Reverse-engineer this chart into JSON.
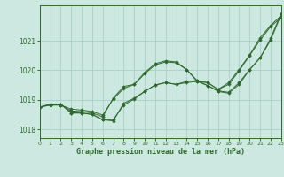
{
  "title": "Graphe pression niveau de la mer (hPa)",
  "background_color": "#cde8e0",
  "grid_color": "#a8cfc4",
  "line_color": "#2d6a2d",
  "marker_color": "#2d6a2d",
  "xmin": 0,
  "xmax": 23,
  "ymin": 1017.7,
  "ymax": 1022.2,
  "yticks": [
    1018,
    1019,
    1020,
    1021
  ],
  "xticks": [
    0,
    1,
    2,
    3,
    4,
    5,
    6,
    7,
    8,
    9,
    10,
    11,
    12,
    13,
    14,
    15,
    16,
    17,
    18,
    19,
    20,
    21,
    22,
    23
  ],
  "series": [
    [
      1018.75,
      1018.82,
      1018.82,
      1018.62,
      1018.6,
      1018.55,
      1018.42,
      1019.05,
      1019.45,
      1019.52,
      1019.92,
      1020.22,
      1020.32,
      1020.28,
      1020.02,
      1019.65,
      1019.58,
      1019.35,
      1019.58,
      1020.02,
      1020.52,
      1021.1,
      1021.52,
      1021.85
    ],
    [
      1018.75,
      1018.85,
      1018.85,
      1018.55,
      1018.55,
      1018.5,
      1018.32,
      1018.28,
      1018.88,
      1019.05,
      1019.28,
      1019.5,
      1019.58,
      1019.52,
      1019.62,
      1019.65,
      1019.48,
      1019.3,
      1019.25,
      1019.58,
      1020.02,
      1020.42,
      1021.08,
      1021.92
    ],
    [
      1018.75,
      1018.82,
      1018.82,
      1018.68,
      1018.65,
      1018.6,
      1018.48,
      1019.02,
      1019.38,
      1019.52,
      1019.88,
      1020.18,
      1020.28,
      1020.25,
      1020.02,
      1019.62,
      1019.58,
      1019.35,
      1019.52,
      1019.98,
      1020.5,
      1021.02,
      1021.48,
      1021.78
    ],
    [
      1018.75,
      1018.85,
      1018.85,
      1018.55,
      1018.55,
      1018.5,
      1018.32,
      1018.32,
      1018.82,
      1019.02,
      1019.28,
      1019.5,
      1019.58,
      1019.52,
      1019.58,
      1019.62,
      1019.48,
      1019.28,
      1019.22,
      1019.52,
      1020.02,
      1020.42,
      1021.02,
      1021.88
    ]
  ]
}
